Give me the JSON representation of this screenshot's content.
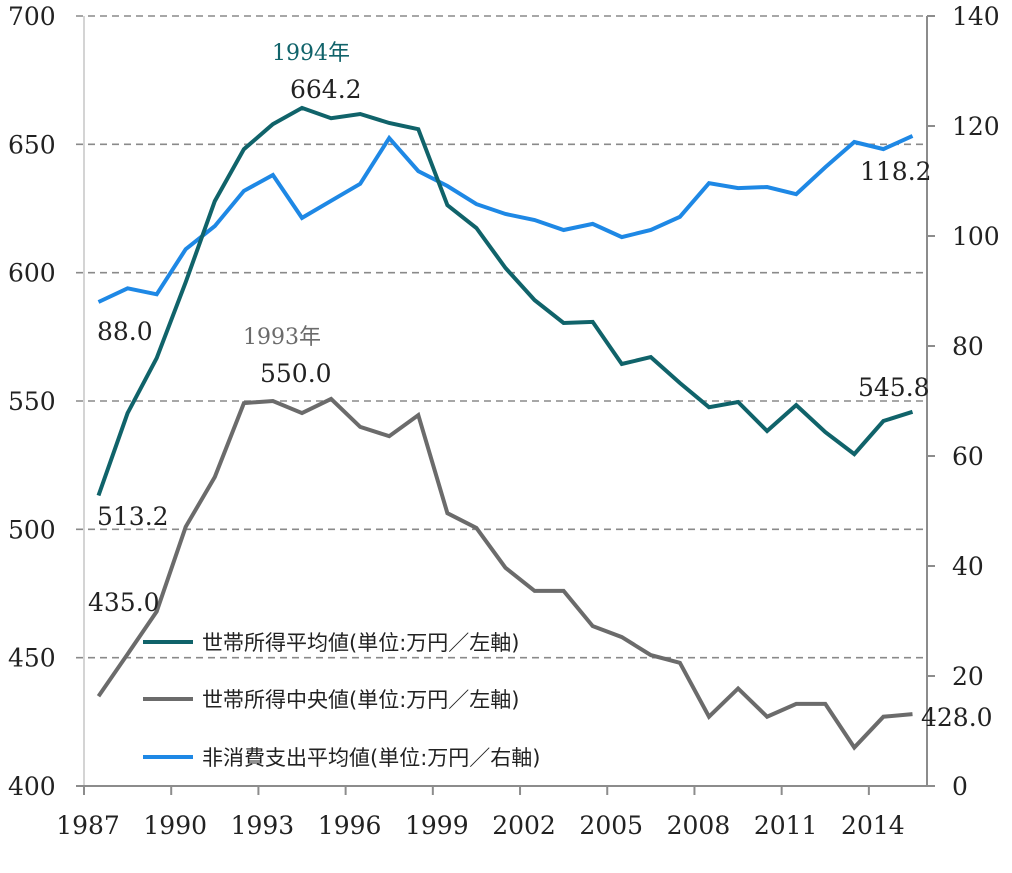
{
  "chart_data": {
    "type": "line",
    "title": "",
    "xlabel": "",
    "ylabel_left": "",
    "ylabel_right": "",
    "x": [
      1987,
      1988,
      1989,
      1990,
      1991,
      1992,
      1993,
      1994,
      1995,
      1996,
      1997,
      1998,
      1999,
      2000,
      2001,
      2002,
      2003,
      2004,
      2005,
      2006,
      2007,
      2008,
      2009,
      2010,
      2011,
      2012,
      2013,
      2014,
      2015
    ],
    "x_tick_labels": [
      "1987",
      "1990",
      "1993",
      "1996",
      "1999",
      "2002",
      "2005",
      "2008",
      "2011",
      "2014"
    ],
    "y_left": {
      "range": [
        400,
        700
      ],
      "ticks": [
        "400",
        "450",
        "500",
        "550",
        "600",
        "650",
        "700"
      ],
      "grid": true
    },
    "y_right": {
      "range": [
        0,
        140
      ],
      "ticks": [
        "0",
        "20",
        "40",
        "60",
        "80",
        "100",
        "120",
        "140"
      ]
    },
    "series": [
      {
        "name": "世帯所得平均値(単位:万円／左軸)",
        "axis": "left",
        "color": "#10636a",
        "values": [
          513.2,
          545.3,
          566.7,
          596.3,
          627.9,
          648.1,
          657.9,
          664.2,
          660.2,
          661.8,
          658.3,
          655.9,
          626.3,
          617.4,
          601.8,
          589.3,
          580.4,
          580.8,
          564.4,
          567.1,
          557.0,
          547.6,
          549.6,
          538.3,
          548.4,
          537.9,
          529.3,
          542.2,
          545.8
        ]
      },
      {
        "name": "世帯所得中央値(単位:万円／左軸)",
        "axis": "left",
        "color": "#6b6b6b",
        "values": [
          435.0,
          451.4,
          468.0,
          501.0,
          520.4,
          549.2,
          550.0,
          545.3,
          550.8,
          539.9,
          536.3,
          544.5,
          506.3,
          500.5,
          485.0,
          476.0,
          476.0,
          462.3,
          458.0,
          451.0,
          448.0,
          427.0,
          438.0,
          427.0,
          432.0,
          432.0,
          415.0,
          427.0,
          428.0
        ]
      },
      {
        "name": "非消費支出平均値(単位:万円／右軸)",
        "axis": "right",
        "color": "#1e88e5",
        "values": [
          88.0,
          90.5,
          89.4,
          97.6,
          101.8,
          108.2,
          111.1,
          103.3,
          106.4,
          109.5,
          117.8,
          111.8,
          109.1,
          105.8,
          104.0,
          102.9,
          101.1,
          102.2,
          99.8,
          101.1,
          103.5,
          109.6,
          108.7,
          108.9,
          107.6,
          112.5,
          117.1,
          115.8,
          118.2
        ]
      }
    ],
    "annotations": [
      {
        "text": "1994年",
        "series": 0,
        "year": 1994,
        "color": "#10636a"
      },
      {
        "text": "664.2",
        "series": 0,
        "year": 1994
      },
      {
        "text": "513.2",
        "series": 0,
        "year": 1987
      },
      {
        "text": "545.8",
        "series": 0,
        "year": 2015
      },
      {
        "text": "1993年",
        "series": 1,
        "year": 1993,
        "color": "#6b6b6b"
      },
      {
        "text": "550.0",
        "series": 1,
        "year": 1993
      },
      {
        "text": "435.0",
        "series": 1,
        "year": 1987
      },
      {
        "text": "428.0",
        "series": 1,
        "year": 2015
      },
      {
        "text": "88.0",
        "series": 2,
        "year": 1987
      },
      {
        "text": "118.2",
        "series": 2,
        "year": 2015
      }
    ],
    "legend": {
      "placement": "bottom-left-inside",
      "entries": [
        "世帯所得平均値(単位:万円／左軸)",
        "世帯所得中央値(単位:万円／左軸)",
        "非消費支出平均値(単位:万円／右軸)"
      ]
    }
  }
}
